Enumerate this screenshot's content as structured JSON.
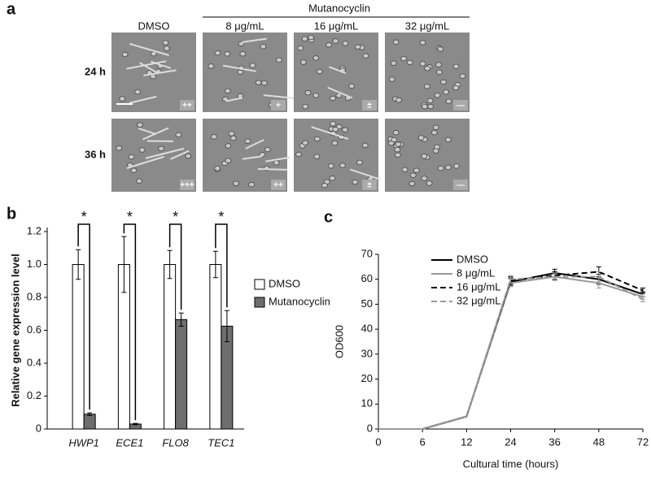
{
  "panel_a": {
    "label": "a",
    "group": "Mutanocyclin",
    "columns": [
      "DMSO",
      "8 μg/mL",
      "16 μg/mL",
      "32 μg/mL"
    ],
    "rows": [
      {
        "name": "24 h",
        "scores": [
          "++",
          "+",
          "±",
          "—"
        ]
      },
      {
        "name": "36 h",
        "scores": [
          "+++",
          "++",
          "±",
          "—"
        ]
      }
    ]
  },
  "chart_data": [
    {
      "type": "bar",
      "panel": "b",
      "ylabel": "Relative gene expression level",
      "categories": [
        "HWP1",
        "ECE1",
        "FLO8",
        "TEC1"
      ],
      "series": [
        {
          "name": "DMSO",
          "color": "#ffffff",
          "values": [
            1,
            1,
            1,
            1
          ],
          "errors": [
            0.09,
            0.17,
            0.085,
            0.08
          ]
        },
        {
          "name": "Mutanocyclin",
          "color": "#6e6e6e",
          "values": [
            0.09,
            0.03,
            0.665,
            0.625
          ],
          "errors": [
            0.008,
            0.004,
            0.04,
            0.095
          ]
        }
      ],
      "annotations": [
        "*",
        "*",
        "*",
        "*"
      ],
      "ylim": [
        0,
        1.2
      ],
      "yticks": [
        0,
        0.2,
        0.4,
        0.6,
        0.8,
        {
          "value": 1,
          "label": "1.0"
        },
        1.2
      ]
    },
    {
      "type": "line",
      "panel": "c",
      "xlabel": "Cultural time (hours)",
      "ylabel": "OD600",
      "categories": [
        "0",
        "6",
        "12",
        "24",
        "36",
        "48",
        "72"
      ],
      "series": [
        {
          "name": "DMSO",
          "color": "#000000",
          "dash": false,
          "values": [
            0,
            0,
            5,
            59,
            62.5,
            60,
            54
          ],
          "errors": [
            0,
            0,
            0,
            1.5,
            1.5,
            2,
            1
          ]
        },
        {
          "name": "8 μg/mL",
          "color": "#999999",
          "dash": false,
          "values": [
            0,
            0,
            5,
            58.5,
            61,
            58.5,
            53
          ],
          "errors": [
            0,
            0,
            0,
            1.5,
            1.5,
            2,
            1
          ]
        },
        {
          "name": "16 μg/mL",
          "color": "#000000",
          "dash": true,
          "values": [
            0,
            0,
            5,
            59.5,
            61.5,
            63,
            55.5
          ],
          "errors": [
            0,
            0,
            0,
            1.5,
            1.5,
            2,
            1
          ]
        },
        {
          "name": "32 μg/mL",
          "color": "#999999",
          "dash": true,
          "values": [
            0,
            0,
            5,
            60,
            61,
            61,
            52
          ],
          "errors": [
            0,
            0,
            0,
            1.5,
            1.5,
            2,
            1
          ]
        }
      ],
      "ylim": [
        0,
        70
      ],
      "yticks": [
        0,
        10,
        20,
        30,
        40,
        50,
        60,
        70
      ]
    }
  ]
}
